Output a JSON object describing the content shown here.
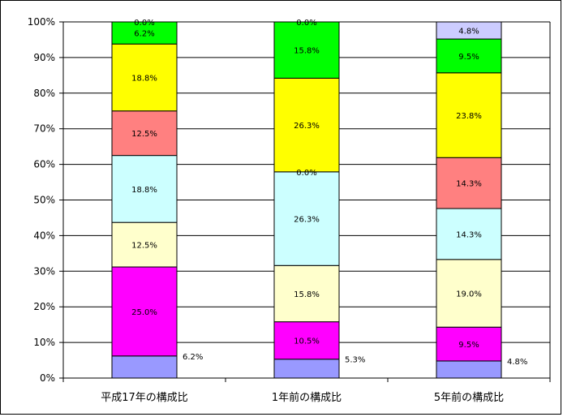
{
  "chart_data": {
    "type": "bar",
    "stacked": true,
    "percent": true,
    "categories": [
      "平成17年の構成比",
      "1年前の構成比",
      "5年前の構成比"
    ],
    "ylim": [
      0,
      100
    ],
    "yticks": [
      "0%",
      "10%",
      "20%",
      "30%",
      "40%",
      "50%",
      "60%",
      "70%",
      "80%",
      "90%",
      "100%"
    ],
    "grid": true,
    "legend": "none",
    "series": [
      {
        "color": "#9999ff",
        "values": [
          6.2,
          5.3,
          4.8
        ],
        "labels": [
          "6.2%",
          "5.3%",
          "4.8%"
        ],
        "label_outside": true
      },
      {
        "color": "#ff00ff",
        "values": [
          25.0,
          10.5,
          9.5
        ],
        "labels": [
          "25.0%",
          "10.5%",
          "9.5%"
        ]
      },
      {
        "color": "#ffffcc",
        "values": [
          12.5,
          15.8,
          19.0
        ],
        "labels": [
          "12.5%",
          "15.8%",
          "19.0%"
        ]
      },
      {
        "color": "#ccffff",
        "values": [
          18.8,
          26.3,
          14.3
        ],
        "labels": [
          "18.8%",
          "26.3%",
          "14.3%"
        ]
      },
      {
        "color": "#ff8080",
        "values": [
          12.5,
          0.0,
          14.3
        ],
        "labels": [
          "12.5%",
          "0.0%",
          "14.3%"
        ]
      },
      {
        "color": "#ffff00",
        "values": [
          18.8,
          26.3,
          23.8
        ],
        "labels": [
          "18.8%",
          "26.3%",
          "23.8%"
        ]
      },
      {
        "color": "#00ff00",
        "values": [
          6.2,
          15.8,
          9.5
        ],
        "labels": [
          "6.2%",
          "15.8%",
          "9.5%"
        ]
      },
      {
        "color": "#ccccff",
        "values": [
          0.0,
          0.0,
          4.8
        ],
        "labels": [
          "0.0%",
          "0.0%",
          "4.8%"
        ]
      }
    ]
  }
}
